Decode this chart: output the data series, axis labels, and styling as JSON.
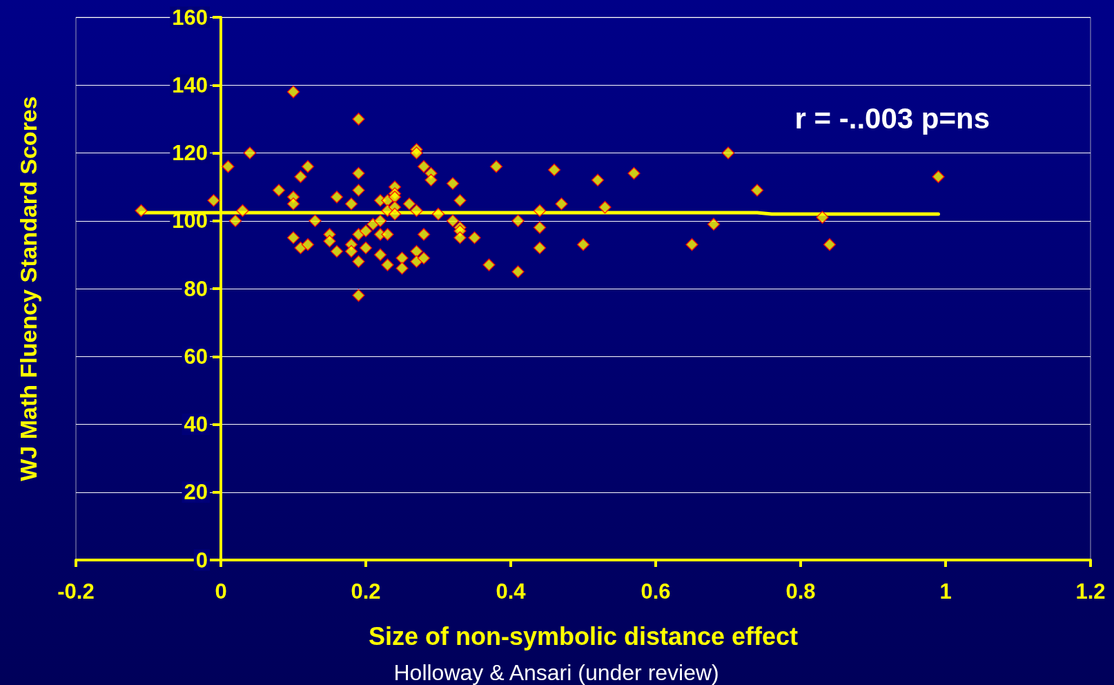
{
  "chart_data": {
    "type": "scatter",
    "xlabel": "Size of non-symbolic distance effect",
    "ylabel": "WJ Math Fluency Standard Scores",
    "xlim": [
      -0.2,
      1.2
    ],
    "xticks": [
      -0.2,
      0,
      0.2,
      0.4,
      0.6,
      0.8,
      1,
      1.2
    ],
    "ylim": [
      0,
      160
    ],
    "yticks": [
      0,
      20,
      40,
      60,
      80,
      100,
      120,
      140,
      160
    ],
    "grid": "y",
    "marker": "diamond",
    "annotations": [
      "r = -..003 p=ns",
      "Holloway & Ansari (under review)"
    ],
    "series": [
      {
        "color": "#ffff00",
        "x": [
          -0.11,
          -0.01,
          0.01,
          0.02,
          0.03,
          0.04,
          0.08,
          0.1,
          0.1,
          0.1,
          0.1,
          0.11,
          0.11,
          0.12,
          0.12,
          0.13,
          0.15,
          0.15,
          0.16,
          0.16,
          0.18,
          0.18,
          0.18,
          0.19,
          0.19,
          0.19,
          0.19,
          0.19,
          0.19,
          0.2,
          0.2,
          0.21,
          0.22,
          0.22,
          0.22,
          0.22,
          0.23,
          0.23,
          0.23,
          0.23,
          0.24,
          0.24,
          0.24,
          0.24,
          0.24,
          0.25,
          0.25,
          0.26,
          0.27,
          0.27,
          0.27,
          0.27,
          0.27,
          0.28,
          0.28,
          0.28,
          0.29,
          0.29,
          0.3,
          0.32,
          0.32,
          0.33,
          0.33,
          0.33,
          0.33,
          0.35,
          0.37,
          0.38,
          0.41,
          0.41,
          0.44,
          0.44,
          0.44,
          0.46,
          0.47,
          0.5,
          0.52,
          0.53,
          0.57,
          0.65,
          0.68,
          0.7,
          0.74,
          0.83,
          0.84,
          0.99
        ],
        "values": [
          103,
          106,
          116,
          100,
          103,
          120,
          109,
          138,
          107,
          105,
          95,
          113,
          92,
          116,
          93,
          100,
          96,
          94,
          107,
          91,
          105,
          93,
          91,
          130,
          114,
          109,
          96,
          88,
          78,
          97,
          92,
          99,
          106,
          100,
          96,
          90,
          106,
          103,
          96,
          87,
          110,
          108,
          107,
          104,
          102,
          89,
          86,
          105,
          121,
          120,
          103,
          91,
          88,
          116,
          96,
          89,
          114,
          112,
          102,
          111,
          100,
          106,
          98,
          97,
          95,
          95,
          87,
          116,
          100,
          85,
          103,
          98,
          92,
          115,
          105,
          93,
          112,
          104,
          114,
          93,
          99,
          120,
          109,
          101,
          93,
          113
        ]
      },
      {
        "type": "line",
        "color": "#ffff00",
        "marker": "none",
        "x": [
          -0.11,
          0.74,
          0.76,
          0.99
        ],
        "values": [
          102.4,
          102.4,
          102,
          102
        ]
      }
    ]
  }
}
